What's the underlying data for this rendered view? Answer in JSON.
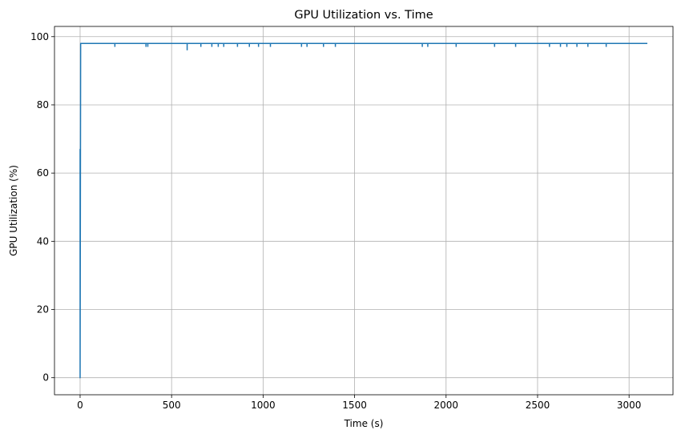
{
  "chart_data": {
    "type": "line",
    "title": "GPU Utilization vs. Time",
    "xlabel": "Time (s)",
    "ylabel": "GPU Utilization (%)",
    "xlim": [
      -140,
      3240
    ],
    "ylim": [
      -5,
      103
    ],
    "xticks": [
      0,
      500,
      1000,
      1500,
      2000,
      2500,
      3000
    ],
    "yticks": [
      0,
      20,
      40,
      60,
      80,
      100
    ],
    "grid": true,
    "legend": "none",
    "color": "#1f77b4",
    "series": [
      {
        "x": [
          0,
          0,
          0,
          3,
          3,
          3100
        ],
        "y": [
          0,
          67,
          0,
          98,
          98,
          98
        ]
      }
    ],
    "dips": [
      {
        "x": 190,
        "y": 97
      },
      {
        "x": 360,
        "y": 97
      },
      {
        "x": 370,
        "y": 97
      },
      {
        "x": 585,
        "y": 96
      },
      {
        "x": 660,
        "y": 97
      },
      {
        "x": 720,
        "y": 97
      },
      {
        "x": 755,
        "y": 97
      },
      {
        "x": 785,
        "y": 97
      },
      {
        "x": 860,
        "y": 97
      },
      {
        "x": 925,
        "y": 97
      },
      {
        "x": 975,
        "y": 97
      },
      {
        "x": 1040,
        "y": 97
      },
      {
        "x": 1210,
        "y": 97
      },
      {
        "x": 1240,
        "y": 97
      },
      {
        "x": 1330,
        "y": 97
      },
      {
        "x": 1395,
        "y": 97
      },
      {
        "x": 1870,
        "y": 97
      },
      {
        "x": 1900,
        "y": 97
      },
      {
        "x": 2055,
        "y": 97
      },
      {
        "x": 2265,
        "y": 97
      },
      {
        "x": 2380,
        "y": 97
      },
      {
        "x": 2565,
        "y": 97
      },
      {
        "x": 2625,
        "y": 97
      },
      {
        "x": 2660,
        "y": 97
      },
      {
        "x": 2715,
        "y": 97
      },
      {
        "x": 2775,
        "y": 97
      },
      {
        "x": 2875,
        "y": 97
      }
    ]
  }
}
